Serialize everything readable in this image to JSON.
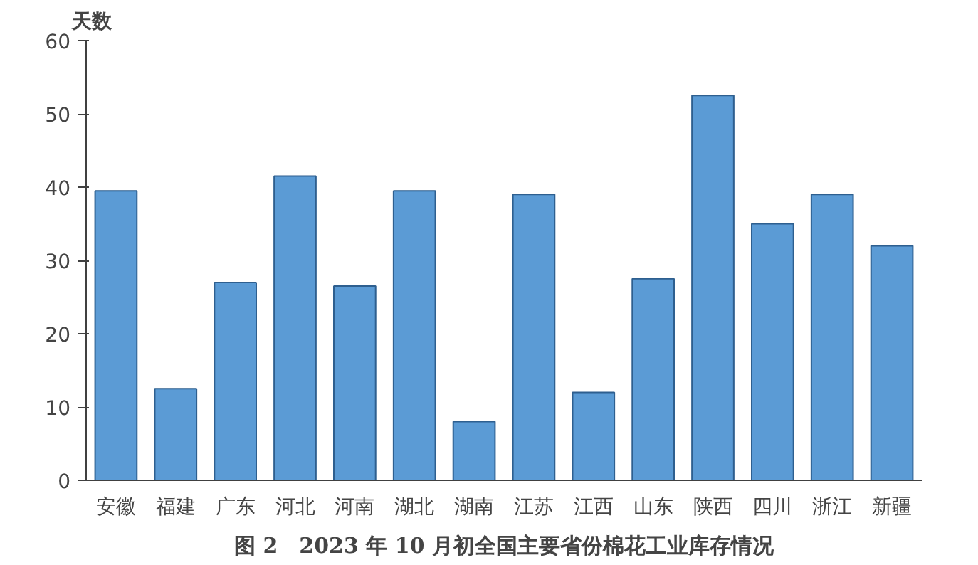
{
  "chart_data": {
    "type": "bar",
    "title": "图 2　2023 年 10 月初全国主要省份棉花工业库存情况",
    "ylabel": "天数",
    "categories": [
      "安徽",
      "福建",
      "广东",
      "河北",
      "河南",
      "湖北",
      "湖南",
      "江苏",
      "江西",
      "山东",
      "陕西",
      "四川",
      "浙江",
      "新疆"
    ],
    "values": [
      39.5,
      12.5,
      27,
      41.5,
      26.5,
      39.5,
      8,
      39,
      12,
      27.5,
      52.5,
      35,
      39,
      32
    ],
    "color": "#5b9bd5",
    "ylim": [
      0,
      60
    ],
    "yticks": [
      0,
      10,
      20,
      30,
      40,
      50,
      60
    ]
  }
}
